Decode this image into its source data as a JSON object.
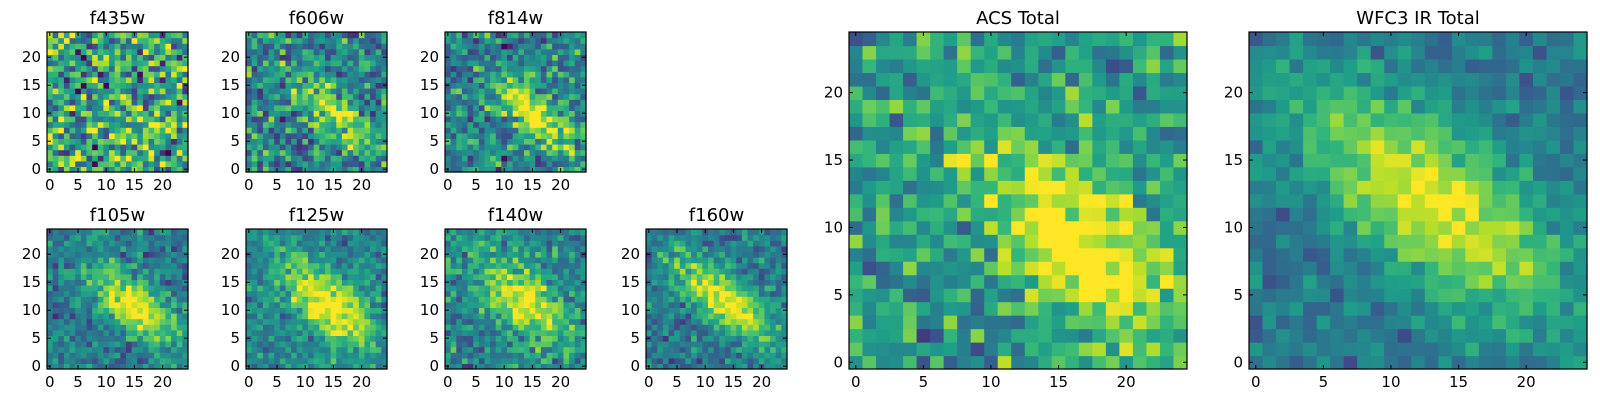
{
  "colors": {
    "colormap": "viridis",
    "axes_frame": "#000000",
    "background": "#ffffff"
  },
  "chart_data": [
    {
      "type": "heatmap",
      "title": "f435w",
      "xlim": [
        0,
        25
      ],
      "ylim": [
        0,
        25
      ],
      "xticks": [
        "0",
        "5",
        "10",
        "15",
        "20"
      ],
      "yticks": [
        "0",
        "5",
        "10",
        "15",
        "20"
      ],
      "grid": false,
      "image_size": [
        25,
        25
      ],
      "morphology": {
        "peak_x": 18,
        "peak_y": 9,
        "peak": 0.12,
        "sigma_major": 4,
        "sigma_minor": 2,
        "angle_deg": -40,
        "noise": 0.5,
        "background": 0.6
      }
    },
    {
      "type": "heatmap",
      "title": "f606w",
      "xlim": [
        0,
        25
      ],
      "ylim": [
        0,
        25
      ],
      "xticks": [
        "0",
        "5",
        "10",
        "15",
        "20"
      ],
      "yticks": [
        "0",
        "5",
        "10",
        "15",
        "20"
      ],
      "grid": false,
      "image_size": [
        25,
        25
      ],
      "morphology": {
        "peak_x": 15,
        "peak_y": 10,
        "peak": 0.45,
        "sigma_major": 6,
        "sigma_minor": 2.2,
        "angle_deg": -40,
        "noise": 0.35,
        "background": 0.45
      }
    },
    {
      "type": "heatmap",
      "title": "f814w",
      "xlim": [
        0,
        25
      ],
      "ylim": [
        0,
        25
      ],
      "xticks": [
        "0",
        "5",
        "10",
        "15",
        "20"
      ],
      "yticks": [
        "0",
        "5",
        "10",
        "15",
        "20"
      ],
      "grid": false,
      "image_size": [
        25,
        25
      ],
      "morphology": {
        "peak_x": 15,
        "peak_y": 10,
        "peak": 0.55,
        "sigma_major": 6,
        "sigma_minor": 2.4,
        "angle_deg": -40,
        "noise": 0.33,
        "background": 0.45
      }
    },
    {
      "type": "heatmap",
      "title": "f105w",
      "xlim": [
        0,
        25
      ],
      "ylim": [
        0,
        25
      ],
      "xticks": [
        "0",
        "5",
        "10",
        "15",
        "20"
      ],
      "yticks": [
        "0",
        "5",
        "10",
        "15",
        "20"
      ],
      "grid": false,
      "image_size": [
        25,
        25
      ],
      "morphology": {
        "peak_x": 15,
        "peak_y": 11,
        "peak": 0.6,
        "sigma_major": 6.5,
        "sigma_minor": 3,
        "angle_deg": -40,
        "noise": 0.22,
        "background": 0.4
      }
    },
    {
      "type": "heatmap",
      "title": "f125w",
      "xlim": [
        0,
        25
      ],
      "ylim": [
        0,
        25
      ],
      "xticks": [
        "0",
        "5",
        "10",
        "15",
        "20"
      ],
      "yticks": [
        "0",
        "5",
        "10",
        "15",
        "20"
      ],
      "grid": false,
      "image_size": [
        25,
        25
      ],
      "morphology": {
        "peak_x": 14,
        "peak_y": 11,
        "peak": 0.6,
        "sigma_major": 7,
        "sigma_minor": 3.2,
        "angle_deg": -40,
        "noise": 0.22,
        "background": 0.45
      }
    },
    {
      "type": "heatmap",
      "title": "f140w",
      "xlim": [
        0,
        25
      ],
      "ylim": [
        0,
        25
      ],
      "xticks": [
        "0",
        "5",
        "10",
        "15",
        "20"
      ],
      "yticks": [
        "0",
        "5",
        "10",
        "15",
        "20"
      ],
      "grid": false,
      "image_size": [
        25,
        25
      ],
      "morphology": {
        "peak_x": 13,
        "peak_y": 12,
        "peak": 0.55,
        "sigma_major": 7,
        "sigma_minor": 3.2,
        "angle_deg": -40,
        "noise": 0.25,
        "background": 0.45
      }
    },
    {
      "type": "heatmap",
      "title": "f160w",
      "xlim": [
        0,
        25
      ],
      "ylim": [
        0,
        25
      ],
      "xticks": [
        "0",
        "5",
        "10",
        "15",
        "20"
      ],
      "yticks": [
        "0",
        "5",
        "10",
        "15",
        "20"
      ],
      "grid": false,
      "image_size": [
        25,
        25
      ],
      "morphology": {
        "peak_x": 13,
        "peak_y": 12,
        "peak": 0.6,
        "sigma_major": 7.5,
        "sigma_minor": 2.8,
        "angle_deg": -40,
        "noise": 0.22,
        "background": 0.4
      }
    },
    {
      "type": "heatmap",
      "title": "ACS Total",
      "xlim": [
        0,
        25
      ],
      "ylim": [
        0,
        25
      ],
      "xticks": [
        "0",
        "5",
        "10",
        "15",
        "20"
      ],
      "yticks": [
        "0",
        "5",
        "10",
        "15",
        "20"
      ],
      "grid": false,
      "image_size": [
        25,
        25
      ],
      "morphology": {
        "peak_x": 17,
        "peak_y": 9,
        "peak": 0.55,
        "sigma_major": 6.5,
        "sigma_minor": 3,
        "angle_deg": -40,
        "noise": 0.28,
        "background": 0.55
      }
    },
    {
      "type": "heatmap",
      "title": "WFC3 IR Total",
      "xlim": [
        0,
        25
      ],
      "ylim": [
        0,
        25
      ],
      "xticks": [
        "0",
        "5",
        "10",
        "15",
        "20"
      ],
      "yticks": [
        "0",
        "5",
        "10",
        "15",
        "20"
      ],
      "grid": false,
      "image_size": [
        25,
        25
      ],
      "morphology": {
        "peak_x": 13,
        "peak_y": 12,
        "peak": 0.6,
        "sigma_major": 8,
        "sigma_minor": 3.5,
        "angle_deg": -40,
        "noise": 0.15,
        "background": 0.4
      }
    }
  ]
}
